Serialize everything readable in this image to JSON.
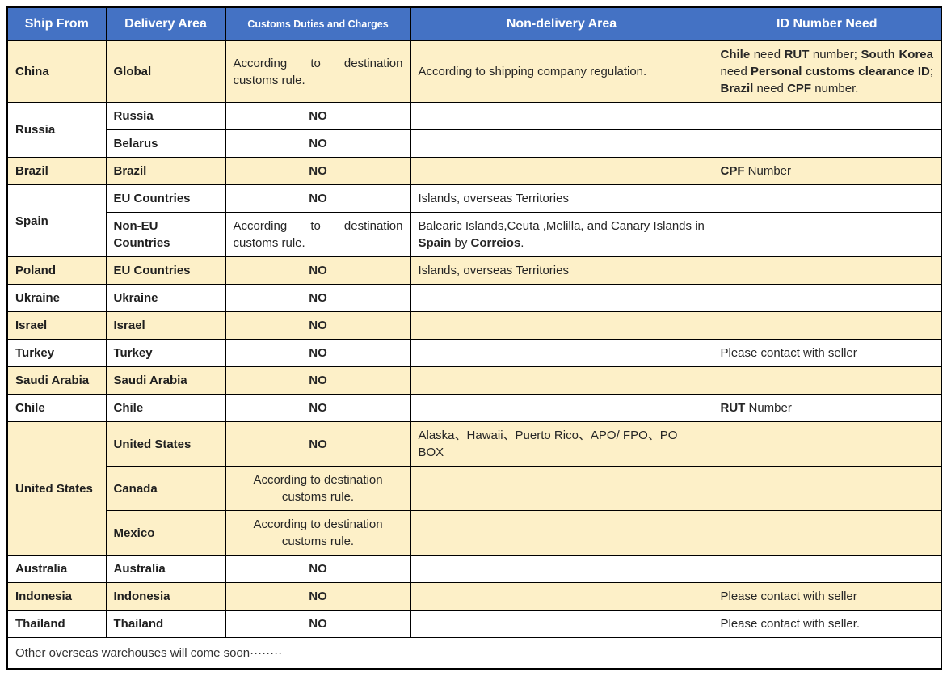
{
  "colors": {
    "header_bg": "#4472C4",
    "header_text": "#FFFFFF",
    "row_highlight": "#FDF0C8",
    "row_plain": "#FFFFFF",
    "border": "#000000",
    "body_text": "#262626"
  },
  "table": {
    "columns": [
      {
        "label": "Ship From"
      },
      {
        "label": "Delivery Area"
      },
      {
        "label": "Customs Duties and Charges"
      },
      {
        "label": "Non-delivery Area"
      },
      {
        "label": "ID Number Need"
      }
    ],
    "rows": [
      {
        "shade": "beige",
        "ship_from": {
          "text": "China",
          "rowspan": 1
        },
        "delivery": {
          "text": "Global"
        },
        "customs": {
          "text": "According to destination customs rule.",
          "align": "justify"
        },
        "non_delivery": {
          "text": "According to shipping company regulation."
        },
        "id": {
          "align": "justify",
          "rich": [
            {
              "t": "Chile",
              "b": 1
            },
            {
              "t": " need "
            },
            {
              "t": "RUT",
              "b": 1
            },
            {
              "t": " number; "
            },
            {
              "t": "South Korea",
              "b": 1
            },
            {
              "t": " need "
            },
            {
              "t": "Personal customs clearance ID",
              "b": 1
            },
            {
              "t": "; "
            },
            {
              "t": "Brazil",
              "b": 1
            },
            {
              "t": " need "
            },
            {
              "t": "CPF",
              "b": 1
            },
            {
              "t": " number."
            }
          ]
        }
      },
      {
        "shade": "white",
        "ship_from": {
          "text": "Russia",
          "rowspan": 2
        },
        "delivery": {
          "text": "Russia"
        },
        "customs": {
          "text": "NO",
          "align": "center",
          "strong": true
        },
        "non_delivery": {
          "text": ""
        },
        "id": {
          "text": ""
        }
      },
      {
        "shade": "white",
        "delivery": {
          "text": "Belarus"
        },
        "customs": {
          "text": "NO",
          "align": "center",
          "strong": true
        },
        "non_delivery": {
          "text": ""
        },
        "id": {
          "text": ""
        }
      },
      {
        "shade": "beige",
        "ship_from": {
          "text": "Brazil",
          "rowspan": 1
        },
        "delivery": {
          "text": "Brazil"
        },
        "customs": {
          "text": "NO",
          "align": "center",
          "strong": true
        },
        "non_delivery": {
          "text": ""
        },
        "id": {
          "rich": [
            {
              "t": "CPF",
              "b": 1
            },
            {
              "t": " Number"
            }
          ]
        }
      },
      {
        "shade": "white",
        "ship_from": {
          "text": "Spain",
          "rowspan": 2
        },
        "delivery": {
          "text": "EU Countries"
        },
        "customs": {
          "text": "NO",
          "align": "center",
          "strong": true
        },
        "non_delivery": {
          "text": "Islands, overseas Territories"
        },
        "id": {
          "text": ""
        }
      },
      {
        "shade": "white",
        "delivery": {
          "text": "Non-EU Countries"
        },
        "customs": {
          "text": "According to destination customs rule.",
          "align": "justify"
        },
        "non_delivery": {
          "rich": [
            {
              "t": "Balearic Islands,Ceuta ,Melilla, and Canary Islands in "
            },
            {
              "t": "Spain",
              "b": 1
            },
            {
              "t": " by "
            },
            {
              "t": "Correios",
              "b": 1
            },
            {
              "t": "."
            }
          ]
        },
        "id": {
          "text": ""
        }
      },
      {
        "shade": "beige",
        "ship_from": {
          "text": "Poland",
          "rowspan": 1
        },
        "delivery": {
          "text": "EU Countries"
        },
        "customs": {
          "text": "NO",
          "align": "center",
          "strong": true
        },
        "non_delivery": {
          "text": "Islands, overseas Territories"
        },
        "id": {
          "text": ""
        }
      },
      {
        "shade": "white",
        "ship_from": {
          "text": "Ukraine",
          "rowspan": 1
        },
        "delivery": {
          "text": "Ukraine"
        },
        "customs": {
          "text": "NO",
          "align": "center",
          "strong": true
        },
        "non_delivery": {
          "text": ""
        },
        "id": {
          "text": ""
        }
      },
      {
        "shade": "beige",
        "ship_from": {
          "text": "Israel",
          "rowspan": 1
        },
        "delivery": {
          "text": "Israel"
        },
        "customs": {
          "text": "NO",
          "align": "center",
          "strong": true
        },
        "non_delivery": {
          "text": ""
        },
        "id": {
          "text": ""
        }
      },
      {
        "shade": "white",
        "ship_from": {
          "text": "Turkey",
          "rowspan": 1
        },
        "delivery": {
          "text": "Turkey"
        },
        "customs": {
          "text": "NO",
          "align": "center",
          "strong": true
        },
        "non_delivery": {
          "text": ""
        },
        "id": {
          "text": "Please contact with seller"
        }
      },
      {
        "shade": "beige",
        "ship_from": {
          "text": "Saudi Arabia",
          "rowspan": 1
        },
        "delivery": {
          "text": "Saudi Arabia"
        },
        "customs": {
          "text": "NO",
          "align": "center",
          "strong": true
        },
        "non_delivery": {
          "text": ""
        },
        "id": {
          "text": ""
        }
      },
      {
        "shade": "white",
        "ship_from": {
          "text": "Chile",
          "rowspan": 1
        },
        "delivery": {
          "text": "Chile"
        },
        "customs": {
          "text": "NO",
          "align": "center",
          "strong": true
        },
        "non_delivery": {
          "text": ""
        },
        "id": {
          "rich": [
            {
              "t": "RUT",
              "b": 1
            },
            {
              "t": " Number"
            }
          ]
        }
      },
      {
        "shade": "beige",
        "ship_from": {
          "text": "United States",
          "rowspan": 3
        },
        "delivery": {
          "text": "United States"
        },
        "customs": {
          "text": "NO",
          "align": "center",
          "strong": true
        },
        "non_delivery": {
          "text": "Alaska、Hawaii、Puerto Rico、APO/ FPO、PO BOX"
        },
        "id": {
          "text": ""
        }
      },
      {
        "shade": "beige",
        "delivery": {
          "text": "Canada"
        },
        "customs": {
          "text": "According to destination customs rule.",
          "align": "center"
        },
        "non_delivery": {
          "text": ""
        },
        "id": {
          "text": ""
        }
      },
      {
        "shade": "beige",
        "delivery": {
          "text": "Mexico"
        },
        "customs": {
          "text": "According to destination customs rule.",
          "align": "center"
        },
        "non_delivery": {
          "text": ""
        },
        "id": {
          "text": ""
        }
      },
      {
        "shade": "white",
        "ship_from": {
          "text": "Australia",
          "rowspan": 1
        },
        "delivery": {
          "text": "Australia"
        },
        "customs": {
          "text": "NO",
          "align": "center",
          "strong": true
        },
        "non_delivery": {
          "text": ""
        },
        "id": {
          "text": ""
        }
      },
      {
        "shade": "beige",
        "ship_from": {
          "text": "Indonesia",
          "rowspan": 1
        },
        "delivery": {
          "text": "Indonesia"
        },
        "customs": {
          "text": "NO",
          "align": "center",
          "strong": true
        },
        "non_delivery": {
          "text": ""
        },
        "id": {
          "text": "Please contact with seller"
        }
      },
      {
        "shade": "white",
        "ship_from": {
          "text": "Thailand",
          "rowspan": 1
        },
        "delivery": {
          "text": "Thailand"
        },
        "customs": {
          "text": "NO",
          "align": "center",
          "strong": true
        },
        "non_delivery": {
          "text": ""
        },
        "id": {
          "text": "Please contact with seller."
        }
      }
    ],
    "footer": "Other overseas warehouses will come soon········"
  }
}
